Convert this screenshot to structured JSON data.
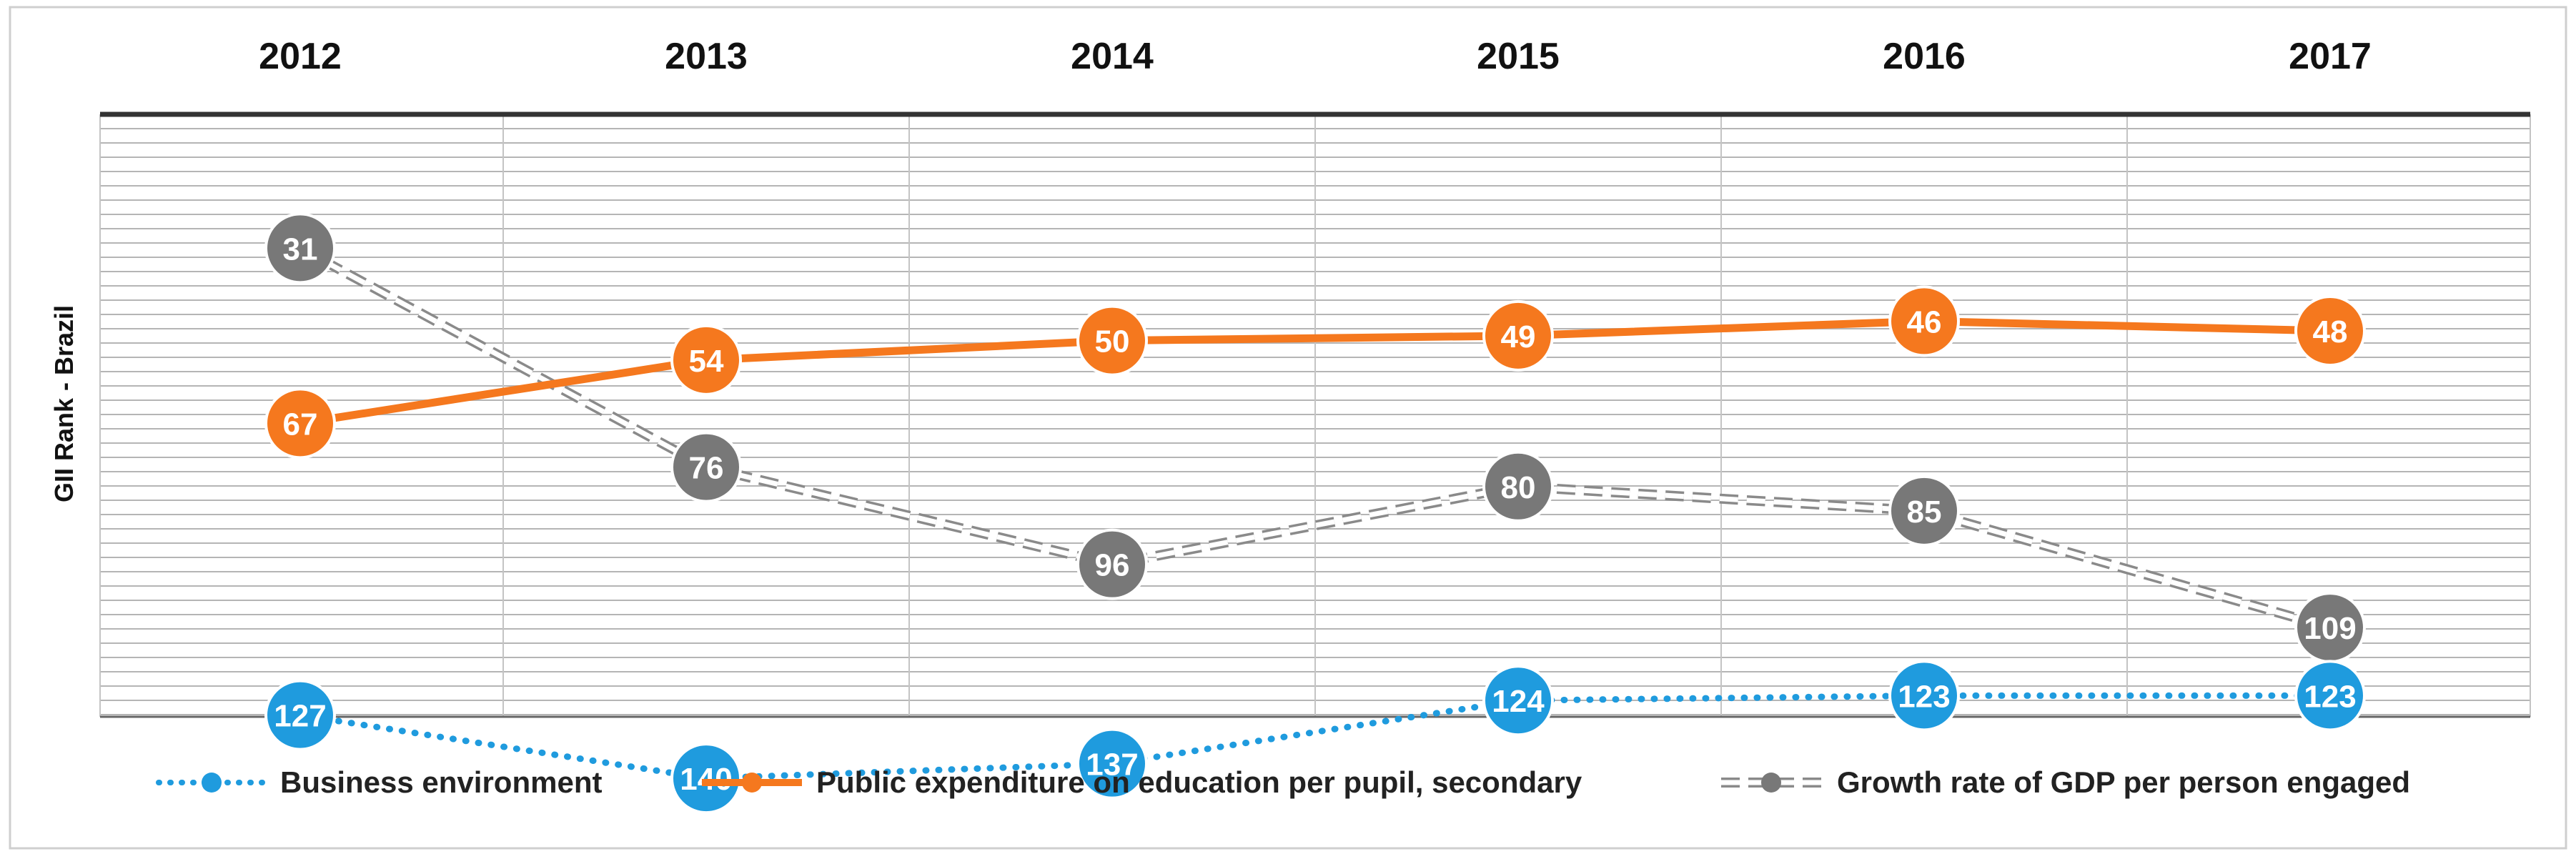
{
  "chart_data": {
    "type": "line",
    "title": "",
    "ylabel": "GII Rank - Brazil",
    "xlabel": "",
    "categories": [
      "2012",
      "2013",
      "2014",
      "2015",
      "2016",
      "2017"
    ],
    "ylim": [
      152,
      0
    ],
    "y_inverted": true,
    "grid": true,
    "legend_position": "bottom",
    "series": [
      {
        "name": "Business environment",
        "style": "dotted",
        "color": "#1F9BDE",
        "values": [
          127,
          140,
          137,
          124,
          123,
          123
        ]
      },
      {
        "name": "Public expenditure on education per pupil, secondary",
        "style": "solid",
        "color": "#F5781E",
        "values": [
          67,
          54,
          50,
          49,
          46,
          48
        ]
      },
      {
        "name": "Growth rate of GDP per person engaged",
        "style": "double-dashed",
        "color": "#777777",
        "values": [
          31,
          76,
          96,
          80,
          85,
          109
        ]
      }
    ]
  }
}
